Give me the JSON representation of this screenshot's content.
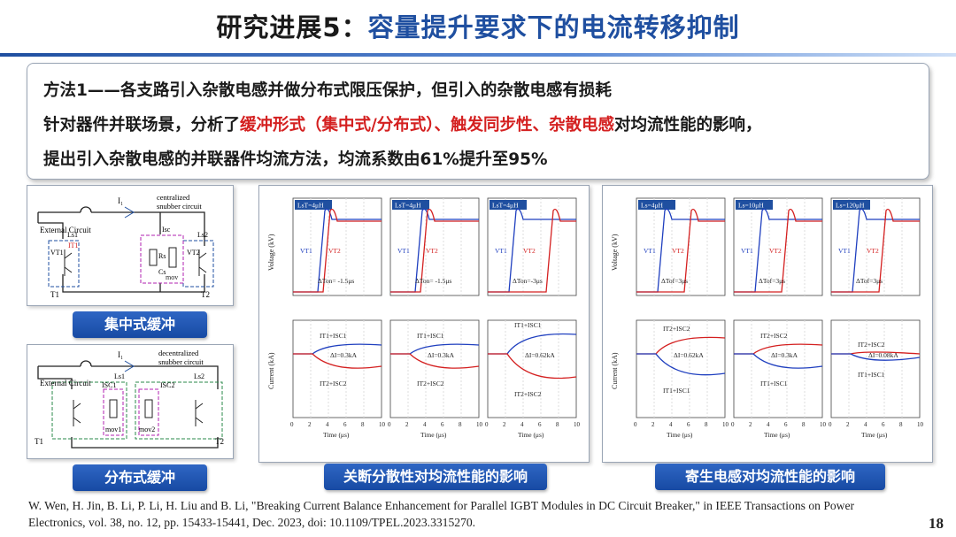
{
  "title": {
    "prefix": "研究进展5：",
    "main": "容量提升要求下的电流转移抑制"
  },
  "textbox": {
    "line1": "方法1——各支路引入杂散电感并做分布式限压保护，但引入的杂散电感有损耗",
    "line2_a": "针对器件并联场景，分析了",
    "line2_b": "缓冲形式（集中式/分布式）、触发同步性、杂散电感",
    "line2_c": "对均流性能的影响，",
    "line3": "提出引入杂散电感的并联器件均流方法，均流系数由61%提升至95%"
  },
  "captions": {
    "centralized": "集中式缓冲",
    "distributed": "分布式缓冲",
    "dispersion": "关断分散性对均流性能的影响",
    "parasitic": "寄生电感对均流性能的影响"
  },
  "circuit_top": {
    "external": "External Circuit",
    "snubber": "centralized",
    "snubber2": "snubber circuit",
    "i1": "I₁",
    "ls": "Ls1",
    "ls2": "Ls2",
    "isc": "Isc",
    "rs": "Rs",
    "cs": "Cs",
    "mov": "mov",
    "t1": "T1",
    "t2": "T2",
    "v1": "VT1",
    "v2": "VT2",
    "it": "IT1"
  },
  "circuit_bottom": {
    "external": "External Circuit",
    "snubber": "decentralized",
    "snubber2": "snubber circuit",
    "i1": "I₁",
    "ls": "Ls1",
    "ls2": "Ls2",
    "isc1": "ISC1",
    "isc2": "ISC2",
    "mov1": "mov1",
    "mov2": "mov2",
    "t1": "T1",
    "t2": "T2"
  },
  "middle_group": {
    "tags": [
      "LsT=4μH",
      "LsT=4μH",
      "LsT=4μH"
    ],
    "delays": [
      "ΔTon= -1.5μs",
      "ΔTon= -1.5μs",
      "ΔTon=-3μs"
    ],
    "di": [
      "ΔI=0.3kA",
      "ΔI=0.3kA",
      "ΔI=0.62kA"
    ],
    "v_labels": [
      "VT1",
      "VT2"
    ],
    "i_label_top": "IT1+ISC1",
    "i_label_bot": "IT2+ISC2",
    "ylabel_v": "Voltage (kV)",
    "ylabel_i": "Current (kA)",
    "xlabel": "Time (μs)",
    "x_ticks": [
      "0",
      "2",
      "4",
      "6",
      "8",
      "10"
    ],
    "v_ticks": [
      "0",
      "0.5",
      "1",
      "1.5"
    ],
    "i_ticks": [
      "0",
      "0.5",
      "1.0",
      "1.5",
      "2.0",
      "2.5"
    ]
  },
  "right_group": {
    "tags": [
      "Ls=4μH",
      "Ls=10μH",
      "Ls=120μH"
    ],
    "delays": [
      "ΔTof=3μs",
      "ΔTof=3μs",
      "ΔTof=3μs"
    ],
    "di": [
      "ΔI=0.62kA",
      "ΔI=0.3kA",
      "ΔI=0.08kA"
    ],
    "i_label_top": "IT2+ISC2",
    "i_label_bot": "IT1+ISC1"
  },
  "reference": "W. Wen, H. Jin, B. Li, P. Li, H. Liu and B. Li, \"Breaking Current Balance Enhancement for Parallel IGBT Modules in DC Circuit Breaker,\" in IEEE Transactions on Power Electronics, vol. 38, no. 12, pp. 15433-15441, Dec. 2023, doi: 10.1109/TPEL.2023.3315270.",
  "page_number": "18",
  "colors": {
    "accent": "#1f4fa0",
    "highlight": "#d42020",
    "trace_blue": "#1f3fbf",
    "trace_red": "#d42020"
  }
}
